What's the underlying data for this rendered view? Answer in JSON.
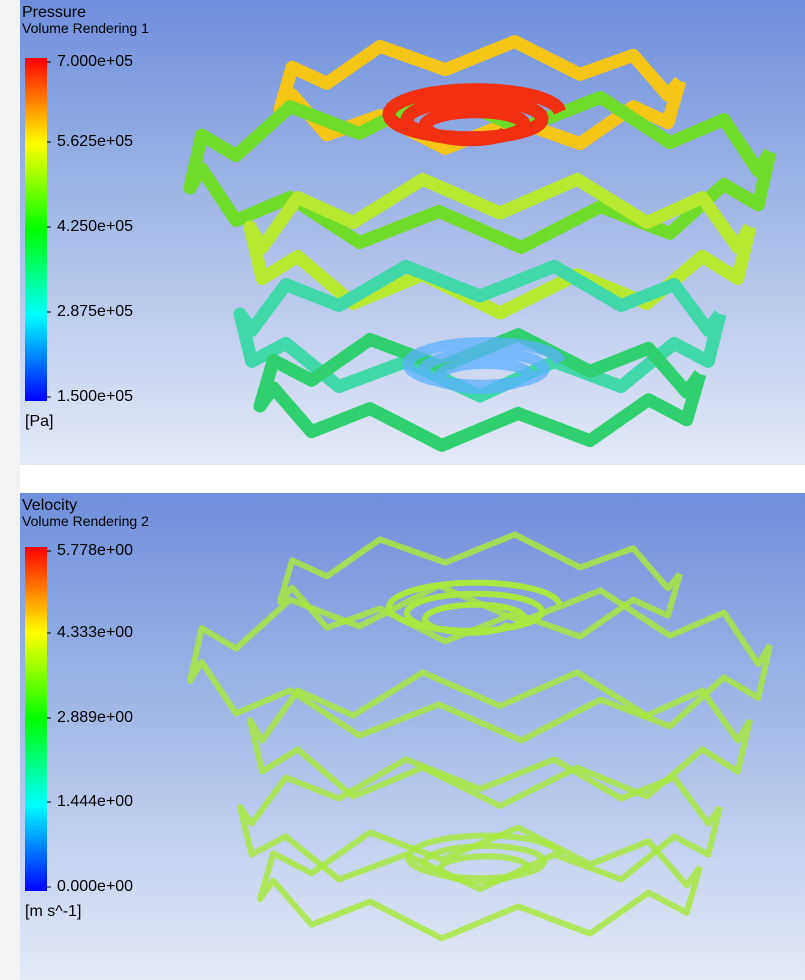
{
  "panels": [
    {
      "title": "Pressure",
      "subtitle": "Volume Rendering 1",
      "legend_labels": [
        "7.000e+05",
        "5.625e+05",
        "4.250e+05",
        "2.875e+05",
        "1.500e+05"
      ],
      "unit": "[Pa]"
    },
    {
      "title": "Velocity",
      "subtitle": "Volume Rendering 2",
      "legend_labels": [
        "5.778e+00",
        "4.333e+00",
        "2.889e+00",
        "1.444e+00",
        "0.000e+00"
      ],
      "unit": "[m s^-1]"
    }
  ]
}
